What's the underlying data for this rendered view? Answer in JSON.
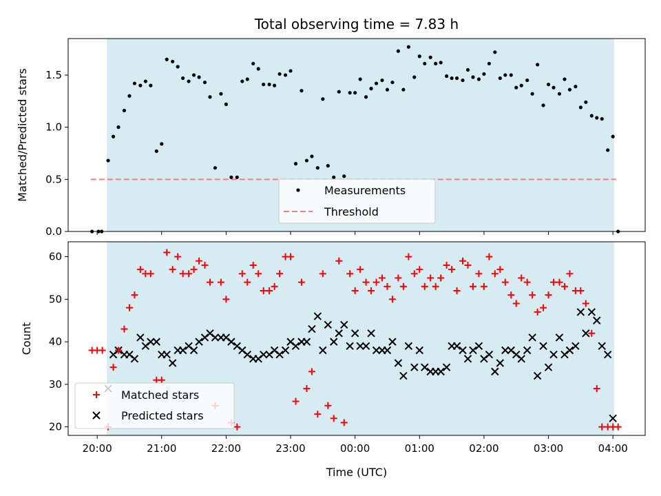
{
  "chart_data": [
    {
      "type": "scatter",
      "title": "Total observing time = 7.83 h",
      "ylabel": "Matched/Predicted stars",
      "xlabel": "",
      "x_ticks": [
        "20:00",
        "21:00",
        "22:00",
        "23:00",
        "00:00",
        "01:00",
        "02:00",
        "03:00",
        "04:00"
      ],
      "y_ticks": [
        "0.0",
        "0.5",
        "1.0",
        "1.5"
      ],
      "ylim": [
        0,
        1.85
      ],
      "xlim_hours": [
        19.55,
        28.5
      ],
      "observing_window_hours": [
        20.15,
        28.02
      ],
      "grid": false,
      "legend_placement": "lower center",
      "threshold": {
        "name": "Threshold",
        "value": 0.5,
        "x_range_hours": [
          19.9,
          28.05
        ],
        "color": "#f08080"
      },
      "series": [
        {
          "name": "Measurements",
          "color": "#000000",
          "x_hours": [
            19.92,
            20.02,
            20.07,
            20.17,
            20.25,
            20.33,
            20.42,
            20.5,
            20.58,
            20.67,
            20.75,
            20.83,
            20.92,
            21.0,
            21.08,
            21.17,
            21.25,
            21.33,
            21.42,
            21.5,
            21.58,
            21.67,
            21.75,
            21.83,
            21.92,
            22.0,
            22.08,
            22.17,
            22.25,
            22.33,
            22.42,
            22.5,
            22.58,
            22.67,
            22.75,
            22.83,
            22.92,
            23.0,
            23.08,
            23.17,
            23.25,
            23.33,
            23.42,
            23.5,
            23.58,
            23.67,
            23.75,
            23.83,
            23.92,
            24.0,
            24.08,
            24.17,
            24.25,
            24.33,
            24.42,
            24.5,
            24.58,
            24.67,
            24.75,
            24.83,
            24.92,
            25.0,
            25.08,
            25.17,
            25.25,
            25.33,
            25.42,
            25.5,
            25.58,
            25.67,
            25.75,
            25.83,
            25.92,
            26.0,
            26.08,
            26.17,
            26.25,
            26.33,
            26.42,
            26.5,
            26.58,
            26.67,
            26.75,
            26.83,
            26.92,
            27.0,
            27.08,
            27.17,
            27.25,
            27.33,
            27.42,
            27.5,
            27.58,
            27.67,
            27.75,
            27.83,
            27.92,
            28.0,
            28.08
          ],
          "y": [
            0.0,
            0.0,
            0.0,
            0.68,
            0.91,
            1.0,
            1.16,
            1.3,
            1.42,
            1.4,
            1.44,
            1.4,
            0.77,
            0.84,
            1.65,
            1.63,
            1.58,
            1.47,
            1.44,
            1.5,
            1.48,
            1.43,
            1.29,
            0.61,
            1.32,
            1.22,
            0.52,
            0.52,
            1.44,
            1.46,
            1.61,
            1.56,
            1.41,
            1.41,
            1.4,
            1.51,
            1.5,
            1.54,
            0.65,
            1.35,
            0.68,
            0.72,
            0.61,
            1.27,
            0.63,
            0.52,
            1.34,
            0.53,
            1.33,
            1.33,
            1.46,
            1.29,
            1.37,
            1.42,
            1.45,
            1.36,
            1.43,
            1.73,
            1.36,
            1.77,
            1.48,
            1.68,
            1.61,
            1.67,
            1.61,
            1.62,
            1.49,
            1.47,
            1.47,
            1.45,
            1.55,
            1.48,
            1.46,
            1.51,
            1.61,
            1.72,
            1.47,
            1.5,
            1.5,
            1.38,
            1.4,
            1.45,
            1.32,
            1.6,
            1.21,
            1.41,
            1.38,
            1.32,
            1.46,
            1.36,
            1.39,
            1.19,
            1.24,
            1.11,
            1.09,
            1.08,
            0.78,
            0.91,
            0.0
          ]
        }
      ]
    },
    {
      "type": "scatter",
      "title": "",
      "ylabel": "Count",
      "xlabel": "Time (UTC)",
      "x_ticks": [
        "20:00",
        "21:00",
        "22:00",
        "23:00",
        "00:00",
        "01:00",
        "02:00",
        "03:00",
        "04:00"
      ],
      "y_ticks": [
        "20",
        "30",
        "40",
        "50",
        "60"
      ],
      "ylim": [
        18,
        63.5
      ],
      "xlim_hours": [
        19.55,
        28.5
      ],
      "observing_window_hours": [
        20.15,
        28.02
      ],
      "grid": false,
      "legend_placement": "lower left",
      "series": [
        {
          "name": "Matched stars",
          "color": "#ff0000",
          "marker": "+",
          "x_hours": [
            19.92,
            20.0,
            20.08,
            20.17,
            20.25,
            20.33,
            20.42,
            20.5,
            20.58,
            20.67,
            20.75,
            20.83,
            20.92,
            21.0,
            21.08,
            21.17,
            21.25,
            21.33,
            21.42,
            21.5,
            21.58,
            21.67,
            21.75,
            21.83,
            21.92,
            22.0,
            22.08,
            22.17,
            22.25,
            22.33,
            22.42,
            22.5,
            22.58,
            22.67,
            22.75,
            22.83,
            22.92,
            23.0,
            23.08,
            23.17,
            23.25,
            23.33,
            23.42,
            23.5,
            23.58,
            23.67,
            23.75,
            23.83,
            23.92,
            24.0,
            24.08,
            24.17,
            24.25,
            24.33,
            24.42,
            24.5,
            24.58,
            24.67,
            24.75,
            24.83,
            24.92,
            25.0,
            25.08,
            25.17,
            25.25,
            25.33,
            25.42,
            25.5,
            25.58,
            25.67,
            25.75,
            25.83,
            25.92,
            26.0,
            26.08,
            26.17,
            26.25,
            26.33,
            26.42,
            26.5,
            26.58,
            26.67,
            26.75,
            26.83,
            26.92,
            27.0,
            27.08,
            27.17,
            27.25,
            27.33,
            27.42,
            27.5,
            27.58,
            27.67,
            27.75,
            27.83,
            27.92,
            28.0,
            28.08
          ],
          "y": [
            38,
            38,
            38,
            20,
            34,
            38,
            43,
            48,
            51,
            57,
            56,
            56,
            31,
            31,
            61,
            57,
            60,
            56,
            56,
            57,
            59,
            58,
            54,
            25,
            54,
            50,
            21,
            20,
            56,
            54,
            58,
            56,
            52,
            52,
            53,
            56,
            60,
            60,
            26,
            54,
            29,
            33,
            23,
            56,
            25,
            22,
            59,
            21,
            56,
            52,
            57,
            54,
            52,
            54,
            55,
            53,
            50,
            55,
            53,
            60,
            56,
            57,
            53,
            55,
            53,
            55,
            58,
            57,
            52,
            59,
            58,
            53,
            56,
            53,
            60,
            56,
            57,
            54,
            51,
            49,
            55,
            54,
            51,
            47,
            48,
            51,
            54,
            54,
            53,
            56,
            52,
            52,
            49,
            42,
            29,
            20,
            20,
            20,
            20
          ],
          "note_skip": "values from index 95 onward are clipped to visible range"
        },
        {
          "name": "Predicted stars",
          "color": "#000000",
          "marker": "x",
          "x_hours": [
            20.17,
            20.25,
            20.33,
            20.42,
            20.5,
            20.58,
            20.67,
            20.75,
            20.83,
            20.92,
            21.0,
            21.08,
            21.17,
            21.25,
            21.33,
            21.42,
            21.5,
            21.58,
            21.67,
            21.75,
            21.83,
            21.92,
            22.0,
            22.08,
            22.17,
            22.25,
            22.33,
            22.42,
            22.5,
            22.58,
            22.67,
            22.75,
            22.83,
            22.92,
            23.0,
            23.08,
            23.17,
            23.25,
            23.33,
            23.42,
            23.5,
            23.58,
            23.67,
            23.75,
            23.83,
            23.92,
            24.0,
            24.08,
            24.17,
            24.25,
            24.33,
            24.42,
            24.5,
            24.58,
            24.67,
            24.75,
            24.83,
            24.92,
            25.0,
            25.08,
            25.17,
            25.25,
            25.33,
            25.42,
            25.5,
            25.58,
            25.67,
            25.75,
            25.83,
            25.92,
            26.0,
            26.08,
            26.17,
            26.25,
            26.33,
            26.42,
            26.5,
            26.58,
            26.67,
            26.75,
            26.83,
            26.92,
            27.0,
            27.08,
            27.17,
            27.25,
            27.33,
            27.42,
            27.5,
            27.58,
            27.67,
            27.75,
            27.83,
            27.92,
            28.0
          ],
          "y": [
            29,
            37,
            38,
            37,
            37,
            36,
            41,
            39,
            40,
            40,
            37,
            37,
            35,
            38,
            38,
            39,
            38,
            40,
            41,
            42,
            41,
            41,
            41,
            40,
            39,
            38,
            37,
            36,
            36,
            37,
            37,
            38,
            37,
            38,
            40,
            39,
            40,
            40,
            43,
            46,
            38,
            44,
            40,
            42,
            44,
            39,
            42,
            39,
            39,
            42,
            38,
            38,
            38,
            40,
            35,
            32,
            39,
            34,
            38,
            34,
            33,
            33,
            33,
            34,
            39,
            39,
            38,
            36,
            38,
            39,
            36,
            37,
            33,
            35,
            38,
            38,
            37,
            36,
            38,
            41,
            32,
            39,
            34,
            37,
            41,
            37,
            38,
            39,
            47,
            42,
            47,
            45,
            39,
            37,
            22
          ],
          "note_skip": "first point at 20:10 is ~29"
        }
      ]
    }
  ]
}
